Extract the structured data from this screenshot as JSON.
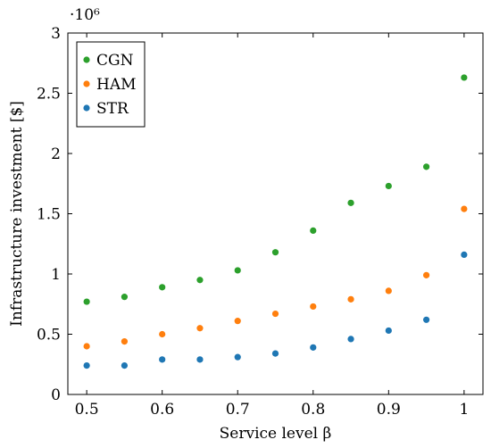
{
  "chart_data": {
    "type": "scatter",
    "title": "",
    "xlabel": "Service level β",
    "ylabel": "Infrastructure investment [$]",
    "scale_note": "·10⁶",
    "xlim": [
      0.475,
      1.025
    ],
    "ylim": [
      0,
      3
    ],
    "xticks": [
      0.5,
      0.6,
      0.7,
      0.8,
      0.9,
      1.0
    ],
    "xtick_labels": [
      "0.5",
      "0.6",
      "0.7",
      "0.8",
      "0.9",
      "1"
    ],
    "yticks": [
      0,
      0.5,
      1,
      1.5,
      2,
      2.5,
      3
    ],
    "ytick_labels": [
      "0",
      "0.5",
      "1",
      "1.5",
      "2",
      "2.5",
      "3"
    ],
    "grid": false,
    "legend_position": "top-left",
    "x": [
      0.5,
      0.55,
      0.6,
      0.65,
      0.7,
      0.75,
      0.8,
      0.85,
      0.9,
      0.95,
      1.0
    ],
    "series": [
      {
        "name": "CGN",
        "color": "#2ca02c",
        "values": [
          0.77,
          0.81,
          0.89,
          0.95,
          1.03,
          1.18,
          1.36,
          1.59,
          1.73,
          1.89,
          2.63
        ]
      },
      {
        "name": "HAM",
        "color": "#ff7f0e",
        "values": [
          0.4,
          0.44,
          0.5,
          0.55,
          0.61,
          0.67,
          0.73,
          0.79,
          0.86,
          0.99,
          1.54
        ]
      },
      {
        "name": "STR",
        "color": "#1f77b4",
        "values": [
          0.24,
          0.24,
          0.29,
          0.29,
          0.31,
          0.34,
          0.39,
          0.46,
          0.53,
          0.62,
          1.16
        ]
      }
    ]
  }
}
